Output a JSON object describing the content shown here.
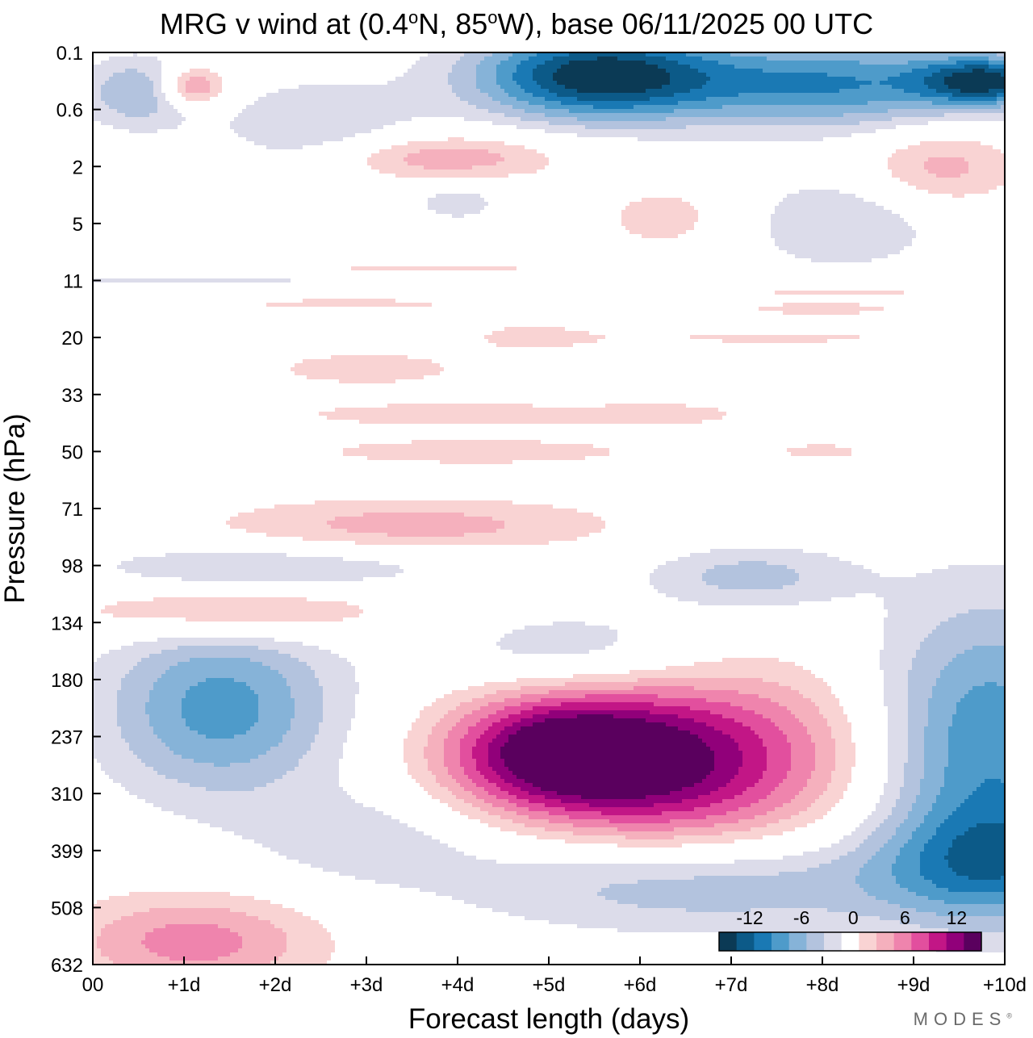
{
  "title_parts": {
    "prefix": "MRG v wind at (0.4",
    "deg1": "o",
    "mid": "N, 85",
    "deg2": "o",
    "suffix": "W),  base 06/11/2025  00 UTC"
  },
  "brand": {
    "name": "MODES",
    "mark": "®"
  },
  "colors": {
    "negative": [
      "#0b3a55",
      "#0c5a88",
      "#1a79b4",
      "#4e9bca",
      "#86b3d8",
      "#b3c3de",
      "#dcdcea"
    ],
    "zero": "#ffffff",
    "positive": [
      "#f9d3d3",
      "#f5b0bd",
      "#ef84ad",
      "#e24f9e",
      "#c21686",
      "#91007a",
      "#5a005e"
    ],
    "axis": "#000000"
  },
  "chart_data": {
    "type": "filled-contour",
    "title": "MRG v wind at (0.4°N, 85°W),  base 06/11/2025  00 UTC",
    "xlabel": "Forecast length (days)",
    "ylabel": "Pressure (hPa)",
    "x_ticks": [
      "00",
      "+1d",
      "+2d",
      "+3d",
      "+4d",
      "+5d",
      "+6d",
      "+7d",
      "+8d",
      "+9d",
      "+10d"
    ],
    "xlim": [
      0,
      10
    ],
    "y_ticks": [
      "0.1",
      "0.6",
      "2",
      "5",
      "11",
      "20",
      "33",
      "50",
      "71",
      "98",
      "134",
      "180",
      "237",
      "310",
      "399",
      "508",
      "632"
    ],
    "y_scale": "pressure levels, top 0.1 hPa to bottom 632 hPa",
    "contour_levels": [
      -14,
      -12,
      -10,
      -8,
      -6,
      -4,
      -2,
      2,
      4,
      6,
      8,
      10,
      12,
      14
    ],
    "colorbar": {
      "labels": [
        "-12",
        "-6",
        "0",
        "6",
        "12"
      ],
      "location": "bottom-right"
    },
    "features": [
      {
        "label": "upper-troposphere positive maximum",
        "days": [
          4.5,
          6.2
        ],
        "pressure_hPa": [
          180,
          399
        ],
        "peak_value": 14
      },
      {
        "label": "mid-troposphere negative",
        "days": [
          0,
          2
        ],
        "pressure_hPa": [
          134,
          310
        ],
        "peak_value": -9
      },
      {
        "label": "lower negative band",
        "days": [
          5,
          9
        ],
        "pressure_hPa": [
          399,
          508
        ],
        "peak_value": -6
      },
      {
        "label": "far-right negative column",
        "days": [
          8.5,
          10
        ],
        "pressure_hPa": [
          134,
          508
        ],
        "peak_value": -9
      },
      {
        "label": "near-surface positive",
        "days": [
          0,
          2
        ],
        "pressure_hPa": [
          508,
          632
        ],
        "peak_value": 6
      },
      {
        "label": "stratospheric negative jet 1",
        "days": [
          4,
          6
        ],
        "pressure_hPa": [
          0.1,
          0.6
        ],
        "peak_value": -14
      },
      {
        "label": "stratospheric negative jet 2",
        "days": [
          7,
          10
        ],
        "pressure_hPa": [
          0.1,
          0.6
        ],
        "peak_value": -12
      },
      {
        "label": "stratospheric positive",
        "days": [
          1,
          1.5
        ],
        "pressure_hPa": [
          0.2,
          0.6
        ],
        "peak_value": 8
      },
      {
        "label": "stratospheric positive band",
        "days": [
          3,
          4.5
        ],
        "pressure_hPa": [
          1.2,
          3
        ],
        "peak_value": 6
      }
    ]
  }
}
